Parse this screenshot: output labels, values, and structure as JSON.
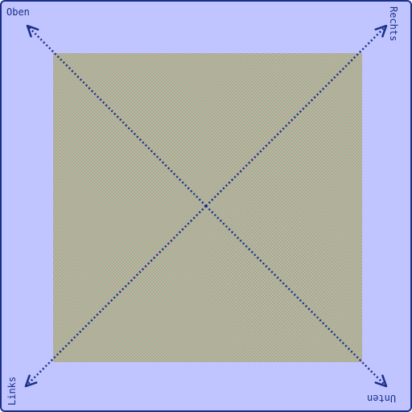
{
  "labels": {
    "top": "Oben",
    "right": "Rechts",
    "bottom": "Unten",
    "left": "Links"
  },
  "colors": {
    "border": "#1b2f8a",
    "background": "#c0c4ff",
    "checker_a": "#c79a9a",
    "checker_b": "#9ac79a",
    "arrow": "#1b2f8a"
  },
  "arrows": [
    {
      "name": "arrow-top-left",
      "direction": "top-left"
    },
    {
      "name": "arrow-top-right",
      "direction": "top-right"
    },
    {
      "name": "arrow-bottom-left",
      "direction": "bottom-left"
    },
    {
      "name": "arrow-bottom-right",
      "direction": "bottom-right"
    }
  ]
}
